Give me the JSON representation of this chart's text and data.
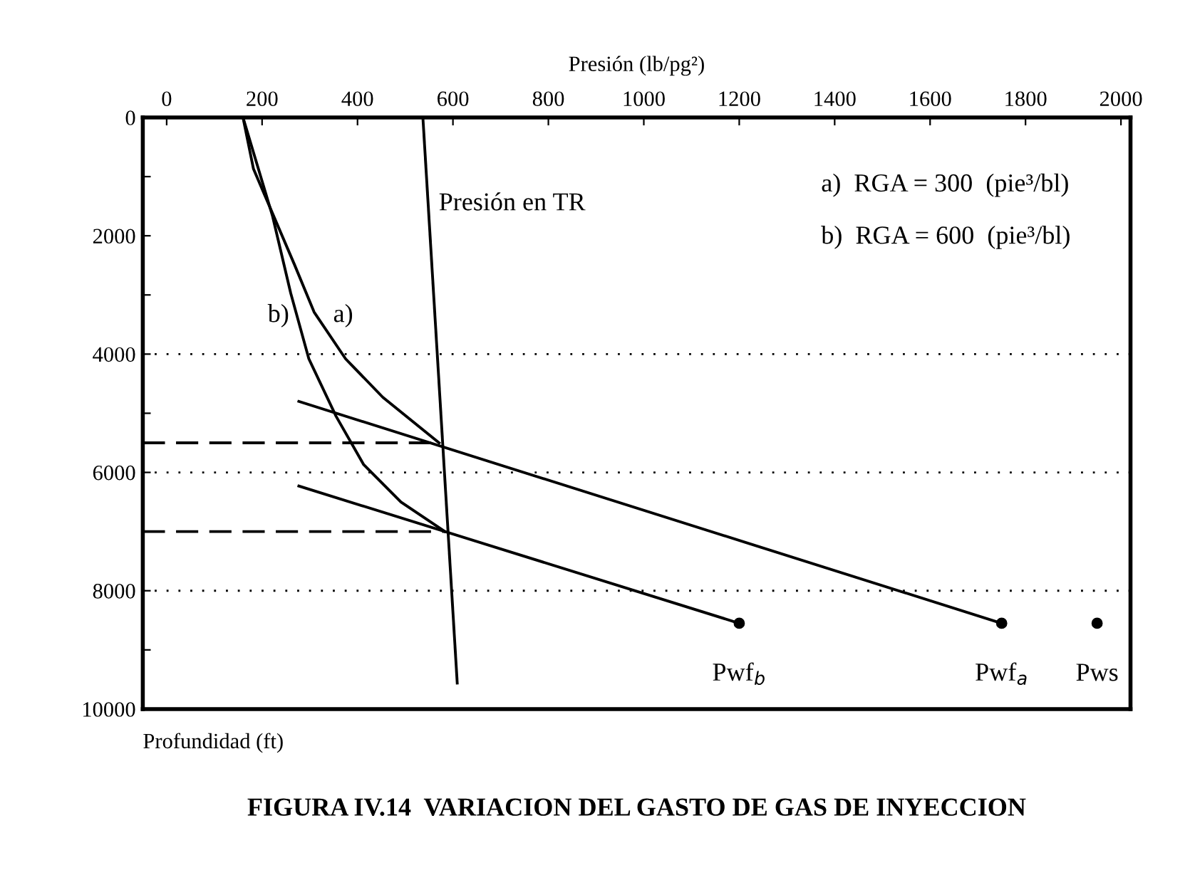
{
  "chart_data": {
    "type": "line",
    "title": "FIGURA IV.14  VARIACION DEL GASTO DE GAS DE INYECCION",
    "xlabel": "Presión (lb/pg²)",
    "xlim": [
      -50,
      2020
    ],
    "ylim": [
      10000,
      0
    ],
    "xticks": [
      0,
      200,
      400,
      600,
      800,
      1000,
      1200,
      1400,
      1600,
      1800,
      2000
    ],
    "yticks": [
      0,
      {
        "value": 1000,
        "label": null
      },
      2000,
      {
        "value": 3000,
        "label": null
      },
      4000,
      {
        "value": 5000,
        "label": null
      },
      6000,
      {
        "value": 7000,
        "label": null
      },
      8000,
      {
        "value": 9000,
        "label": null
      },
      10000
    ],
    "grid": false,
    "legend": false,
    "marker": "none",
    "line_style": "solid",
    "series": [
      {
        "color": "#000000",
        "x": [
          537,
          609
        ],
        "values": [
          0,
          9560
        ]
      },
      {
        "color": "#000000",
        "x": [
          160,
          182,
          268,
          309,
          375,
          453,
          571
        ],
        "values": [
          0,
          870,
          2490,
          3290,
          4080,
          4730,
          5500
        ]
      },
      {
        "color": "#000000",
        "x": [
          160,
          222,
          260,
          298,
          355,
          413,
          491,
          583
        ],
        "values": [
          0,
          1670,
          2970,
          4080,
          5050,
          5870,
          6500,
          7000
        ]
      },
      {
        "color": "#000000",
        "x": [
          277,
          1750
        ],
        "values": [
          4800,
          8550
        ]
      },
      {
        "color": "#000000",
        "x": [
          277,
          1200
        ],
        "values": [
          6230,
          8550
        ]
      },
      {
        "color": "#000000",
        "x": [
          -50,
          571
        ],
        "values": [
          5500,
          5500
        ],
        "line_style": "dashed"
      },
      {
        "color": "#000000",
        "x": [
          -50,
          583
        ],
        "values": [
          7000,
          7000
        ],
        "line_style": "dashed"
      },
      {
        "type": "scatter",
        "marker": "circle",
        "color": "#000000",
        "x": [
          1200,
          1750,
          1950
        ],
        "values": [
          8550,
          8550,
          8550
        ]
      }
    ],
    "ref_lines": [
      {
        "axis": "y",
        "value": 4000,
        "line_style": "dotted",
        "color": "#000000"
      },
      {
        "axis": "y",
        "value": 6000,
        "line_style": "dotted",
        "color": "#000000"
      },
      {
        "axis": "y",
        "value": 8000,
        "line_style": "dotted",
        "color": "#000000"
      }
    ],
    "annotations": [
      {
        "text": "Presión en TR",
        "x": 537,
        "y": 1000
      },
      "a)",
      "b)",
      "a)  RGA = 300  (pie³/bl)",
      "b)  RGA = 600  (pie³/bl)",
      "Profundidad (ft)",
      {
        "text": "Pwf$_{b}$",
        "x": 1200,
        "y": 8550
      },
      {
        "text": "Pwf$_{a}$",
        "x": 1750,
        "y": 8550
      },
      {
        "text": "Pws",
        "x": 1950,
        "y": 8550
      }
    ]
  }
}
